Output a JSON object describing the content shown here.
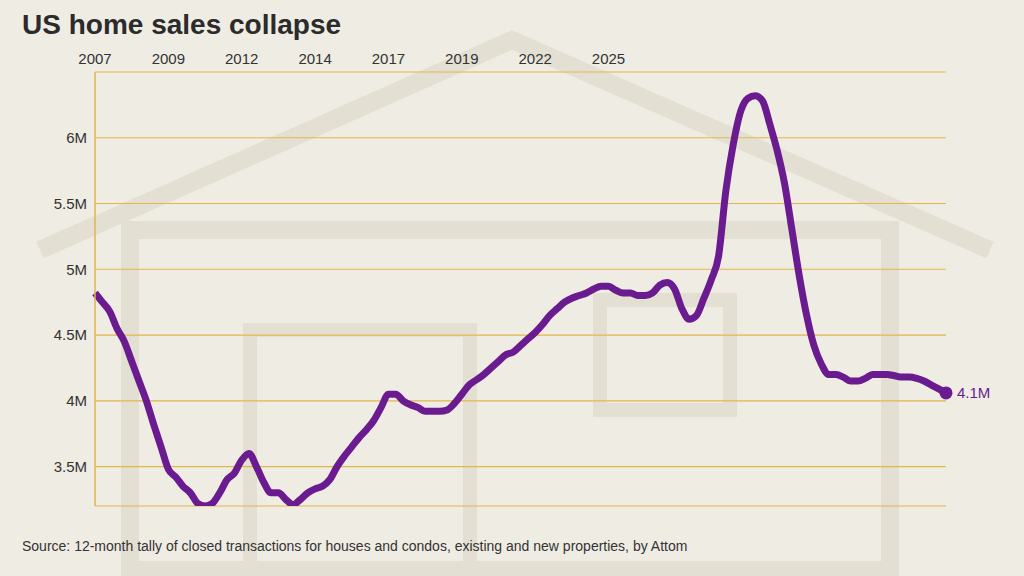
{
  "chart_data": {
    "type": "line",
    "title": "US home sales collapse",
    "source": "Source: 12-month tally of closed transactions for houses and condos, existing and new properties, by Attom",
    "color": "#6a1b8f",
    "grid": true,
    "ylim": [
      3.2,
      6.5
    ],
    "yticks": [
      {
        "value": 3.5,
        "label": "3.5M"
      },
      {
        "value": 4,
        "label": "4M"
      },
      {
        "value": 4.5,
        "label": "4.5M"
      },
      {
        "value": 5,
        "label": "5M"
      },
      {
        "value": 5.5,
        "label": "5.5M"
      },
      {
        "value": 6,
        "label": "6M"
      }
    ],
    "categories": [
      "2007",
      null,
      null,
      null,
      null,
      null,
      null,
      null,
      null,
      null,
      "2009",
      null,
      null,
      null,
      null,
      null,
      null,
      null,
      null,
      null,
      "2012",
      null,
      null,
      null,
      null,
      null,
      null,
      null,
      null,
      null,
      "2014",
      null,
      null,
      null,
      null,
      null,
      null,
      null,
      null,
      null,
      "2017",
      null,
      null,
      null,
      null,
      null,
      null,
      null,
      null,
      null,
      "2019",
      null,
      null,
      null,
      null,
      null,
      null,
      null,
      null,
      null,
      "2022",
      null,
      null,
      null,
      null,
      null,
      null,
      null,
      null,
      null,
      "2025",
      null,
      null,
      null,
      null,
      null,
      null,
      null,
      null,
      null,
      null,
      null,
      null,
      null,
      null,
      null,
      null,
      null,
      null,
      null,
      null,
      null,
      null,
      null,
      null,
      null,
      null,
      null,
      null,
      null,
      null,
      null,
      null,
      null,
      null,
      null,
      null,
      null,
      null,
      null,
      null,
      null,
      null,
      null,
      null,
      null,
      null
    ],
    "values": [
      4.82,
      4.75,
      4.68,
      4.55,
      4.45,
      4.3,
      4.15,
      4.0,
      3.82,
      3.65,
      3.48,
      3.42,
      3.35,
      3.3,
      3.22,
      3.2,
      3.22,
      3.3,
      3.4,
      3.45,
      3.55,
      3.6,
      3.5,
      3.38,
      3.3,
      3.3,
      3.25,
      3.21,
      3.25,
      3.3,
      3.33,
      3.35,
      3.4,
      3.5,
      3.58,
      3.65,
      3.72,
      3.78,
      3.85,
      3.95,
      4.05,
      4.05,
      4.0,
      3.97,
      3.95,
      3.92,
      3.92,
      3.92,
      3.93,
      3.98,
      4.05,
      4.12,
      4.16,
      4.2,
      4.25,
      4.3,
      4.35,
      4.37,
      4.42,
      4.47,
      4.52,
      4.58,
      4.65,
      4.7,
      4.75,
      4.78,
      4.8,
      4.82,
      4.85,
      4.87,
      4.87,
      4.84,
      4.82,
      4.82,
      4.8,
      4.8,
      4.82,
      4.88,
      4.9,
      4.85,
      4.7,
      4.62,
      4.65,
      4.78,
      4.92,
      5.1,
      5.6,
      5.95,
      6.2,
      6.3,
      6.32,
      6.28,
      6.1,
      5.9,
      5.65,
      5.3,
      4.95,
      4.65,
      4.42,
      4.28,
      4.2,
      4.2,
      4.18,
      4.15,
      4.15,
      4.17,
      4.2,
      4.2,
      4.2,
      4.19,
      4.18,
      4.18,
      4.17,
      4.15,
      4.12,
      4.09,
      4.06
    ],
    "value_labels": [
      null,
      null,
      null,
      null,
      null,
      null,
      null,
      null,
      null,
      null,
      null,
      null,
      null,
      null,
      null,
      null,
      null,
      null,
      null,
      null,
      null,
      null,
      null,
      null,
      null,
      null,
      null,
      null,
      null,
      null,
      null,
      null,
      null,
      null,
      null,
      null,
      null,
      null,
      null,
      null,
      null,
      null,
      null,
      null,
      null,
      null,
      null,
      null,
      null,
      null,
      null,
      null,
      null,
      null,
      null,
      null,
      null,
      null,
      null,
      null,
      null,
      null,
      null,
      null,
      null,
      null,
      null,
      null,
      null,
      null,
      null,
      null,
      null,
      null,
      null,
      null,
      null,
      null,
      null,
      null,
      null,
      null,
      null,
      null,
      null,
      null,
      null,
      null,
      null,
      null,
      null,
      null,
      null,
      null,
      null,
      null,
      null,
      null,
      null,
      null,
      null,
      null,
      null,
      null,
      null,
      null,
      null,
      null,
      null,
      null,
      null,
      null,
      null,
      null,
      null,
      null,
      "4.1M"
    ]
  }
}
